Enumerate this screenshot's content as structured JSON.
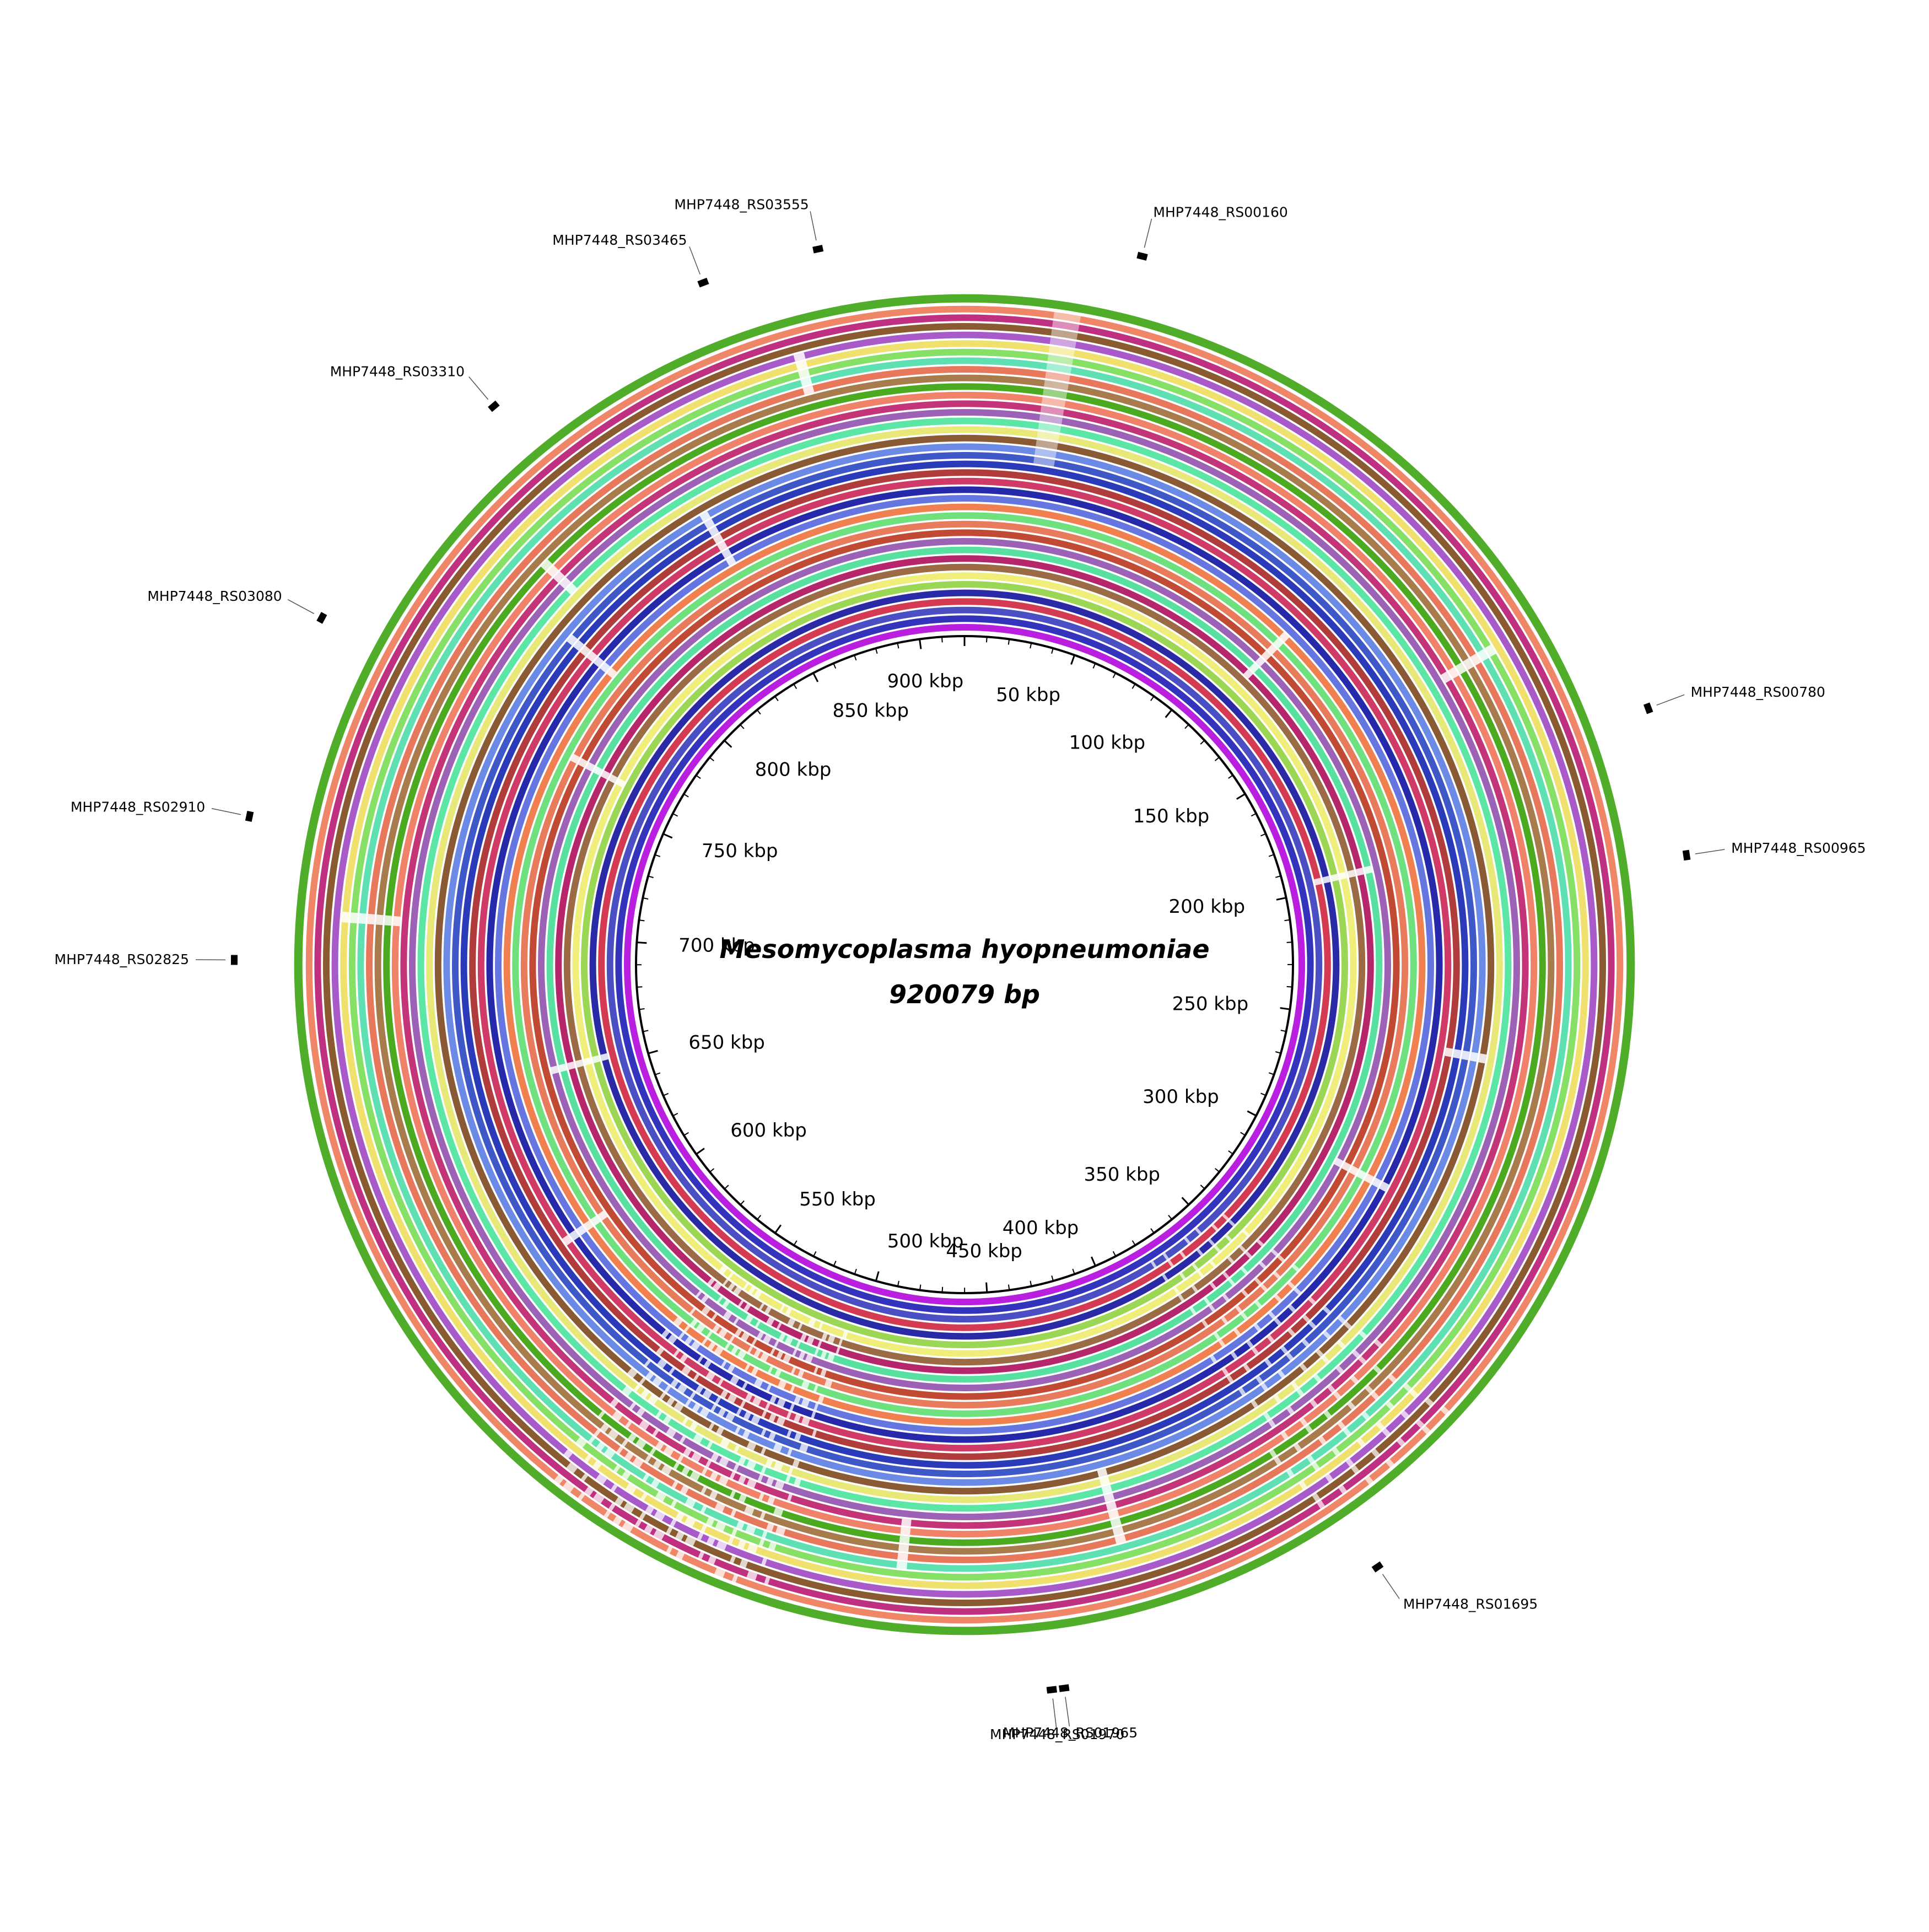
{
  "title": {
    "organism": "Mesomycoplasma hyopneumoniae",
    "length": "920079 bp"
  },
  "genome_length_bp": 920079,
  "tick_labels": [
    {
      "label": "50 kbp",
      "pos": 50000
    },
    {
      "label": "100 kbp",
      "pos": 100000
    },
    {
      "label": "150 kbp",
      "pos": 150000
    },
    {
      "label": "200 kbp",
      "pos": 200000
    },
    {
      "label": "250 kbp",
      "pos": 250000
    },
    {
      "label": "300 kbp",
      "pos": 300000
    },
    {
      "label": "350 kbp",
      "pos": 350000
    },
    {
      "label": "400 kbp",
      "pos": 400000
    },
    {
      "label": "450 kbp",
      "pos": 450000
    },
    {
      "label": "500 kbp",
      "pos": 500000
    },
    {
      "label": "550 kbp",
      "pos": 550000
    },
    {
      "label": "600 kbp",
      "pos": 600000
    },
    {
      "label": "650 kbp",
      "pos": 650000
    },
    {
      "label": "700 kbp",
      "pos": 700000
    },
    {
      "label": "750 kbp",
      "pos": 750000
    },
    {
      "label": "800 kbp",
      "pos": 800000
    },
    {
      "label": "850 kbp",
      "pos": 850000
    },
    {
      "label": "900 kbp",
      "pos": 900000
    }
  ],
  "ring_colors": [
    "#ba1fe0",
    "#3333bb",
    "#4b4fc4",
    "#d43a52",
    "#2a2aa6",
    "#9bd654",
    "#f0ee7a",
    "#9b6b46",
    "#b5276a",
    "#58e0a0",
    "#9b62b6",
    "#c04a34",
    "#e87b5c",
    "#6fe07e",
    "#f08050",
    "#6676e0",
    "#262aaa",
    "#d03a66",
    "#b03c3c",
    "#2a3ab8",
    "#3f58c8",
    "#6a8ae6",
    "#8a5a35",
    "#e8e878",
    "#5be6a5",
    "#9b62b6",
    "#c43478",
    "#ef8268",
    "#4caa20",
    "#a87b4c",
    "#e8785c",
    "#5ee0b2",
    "#86e066",
    "#f0e06e",
    "#a85ac8",
    "#8a5a30",
    "#c03080",
    "#ef8668",
    "#4fad2a"
  ],
  "gene_annotations": [
    {
      "label": "MHP7448_RS00160",
      "pos": 36000
    },
    {
      "label": "MHP7448_RS00780",
      "pos": 177500
    },
    {
      "label": "MHP7448_RS00965",
      "pos": 208000
    },
    {
      "label": "MHP7448_RS01695",
      "pos": 372000
    },
    {
      "label": "MHP7448_RS01965",
      "pos": 440000
    },
    {
      "label": "MHP7448_RS01970",
      "pos": 442500
    },
    {
      "label": "MHP7448_RS02825",
      "pos": 691000
    },
    {
      "label": "MHP7448_RS02910",
      "pos": 720000
    },
    {
      "label": "MHP7448_RS03080",
      "pos": 762500
    },
    {
      "label": "MHP7448_RS03310",
      "pos": 817500
    },
    {
      "label": "MHP7448_RS03465",
      "pos": 866500
    },
    {
      "label": "MHP7448_RS03555",
      "pos": 890500
    }
  ]
}
